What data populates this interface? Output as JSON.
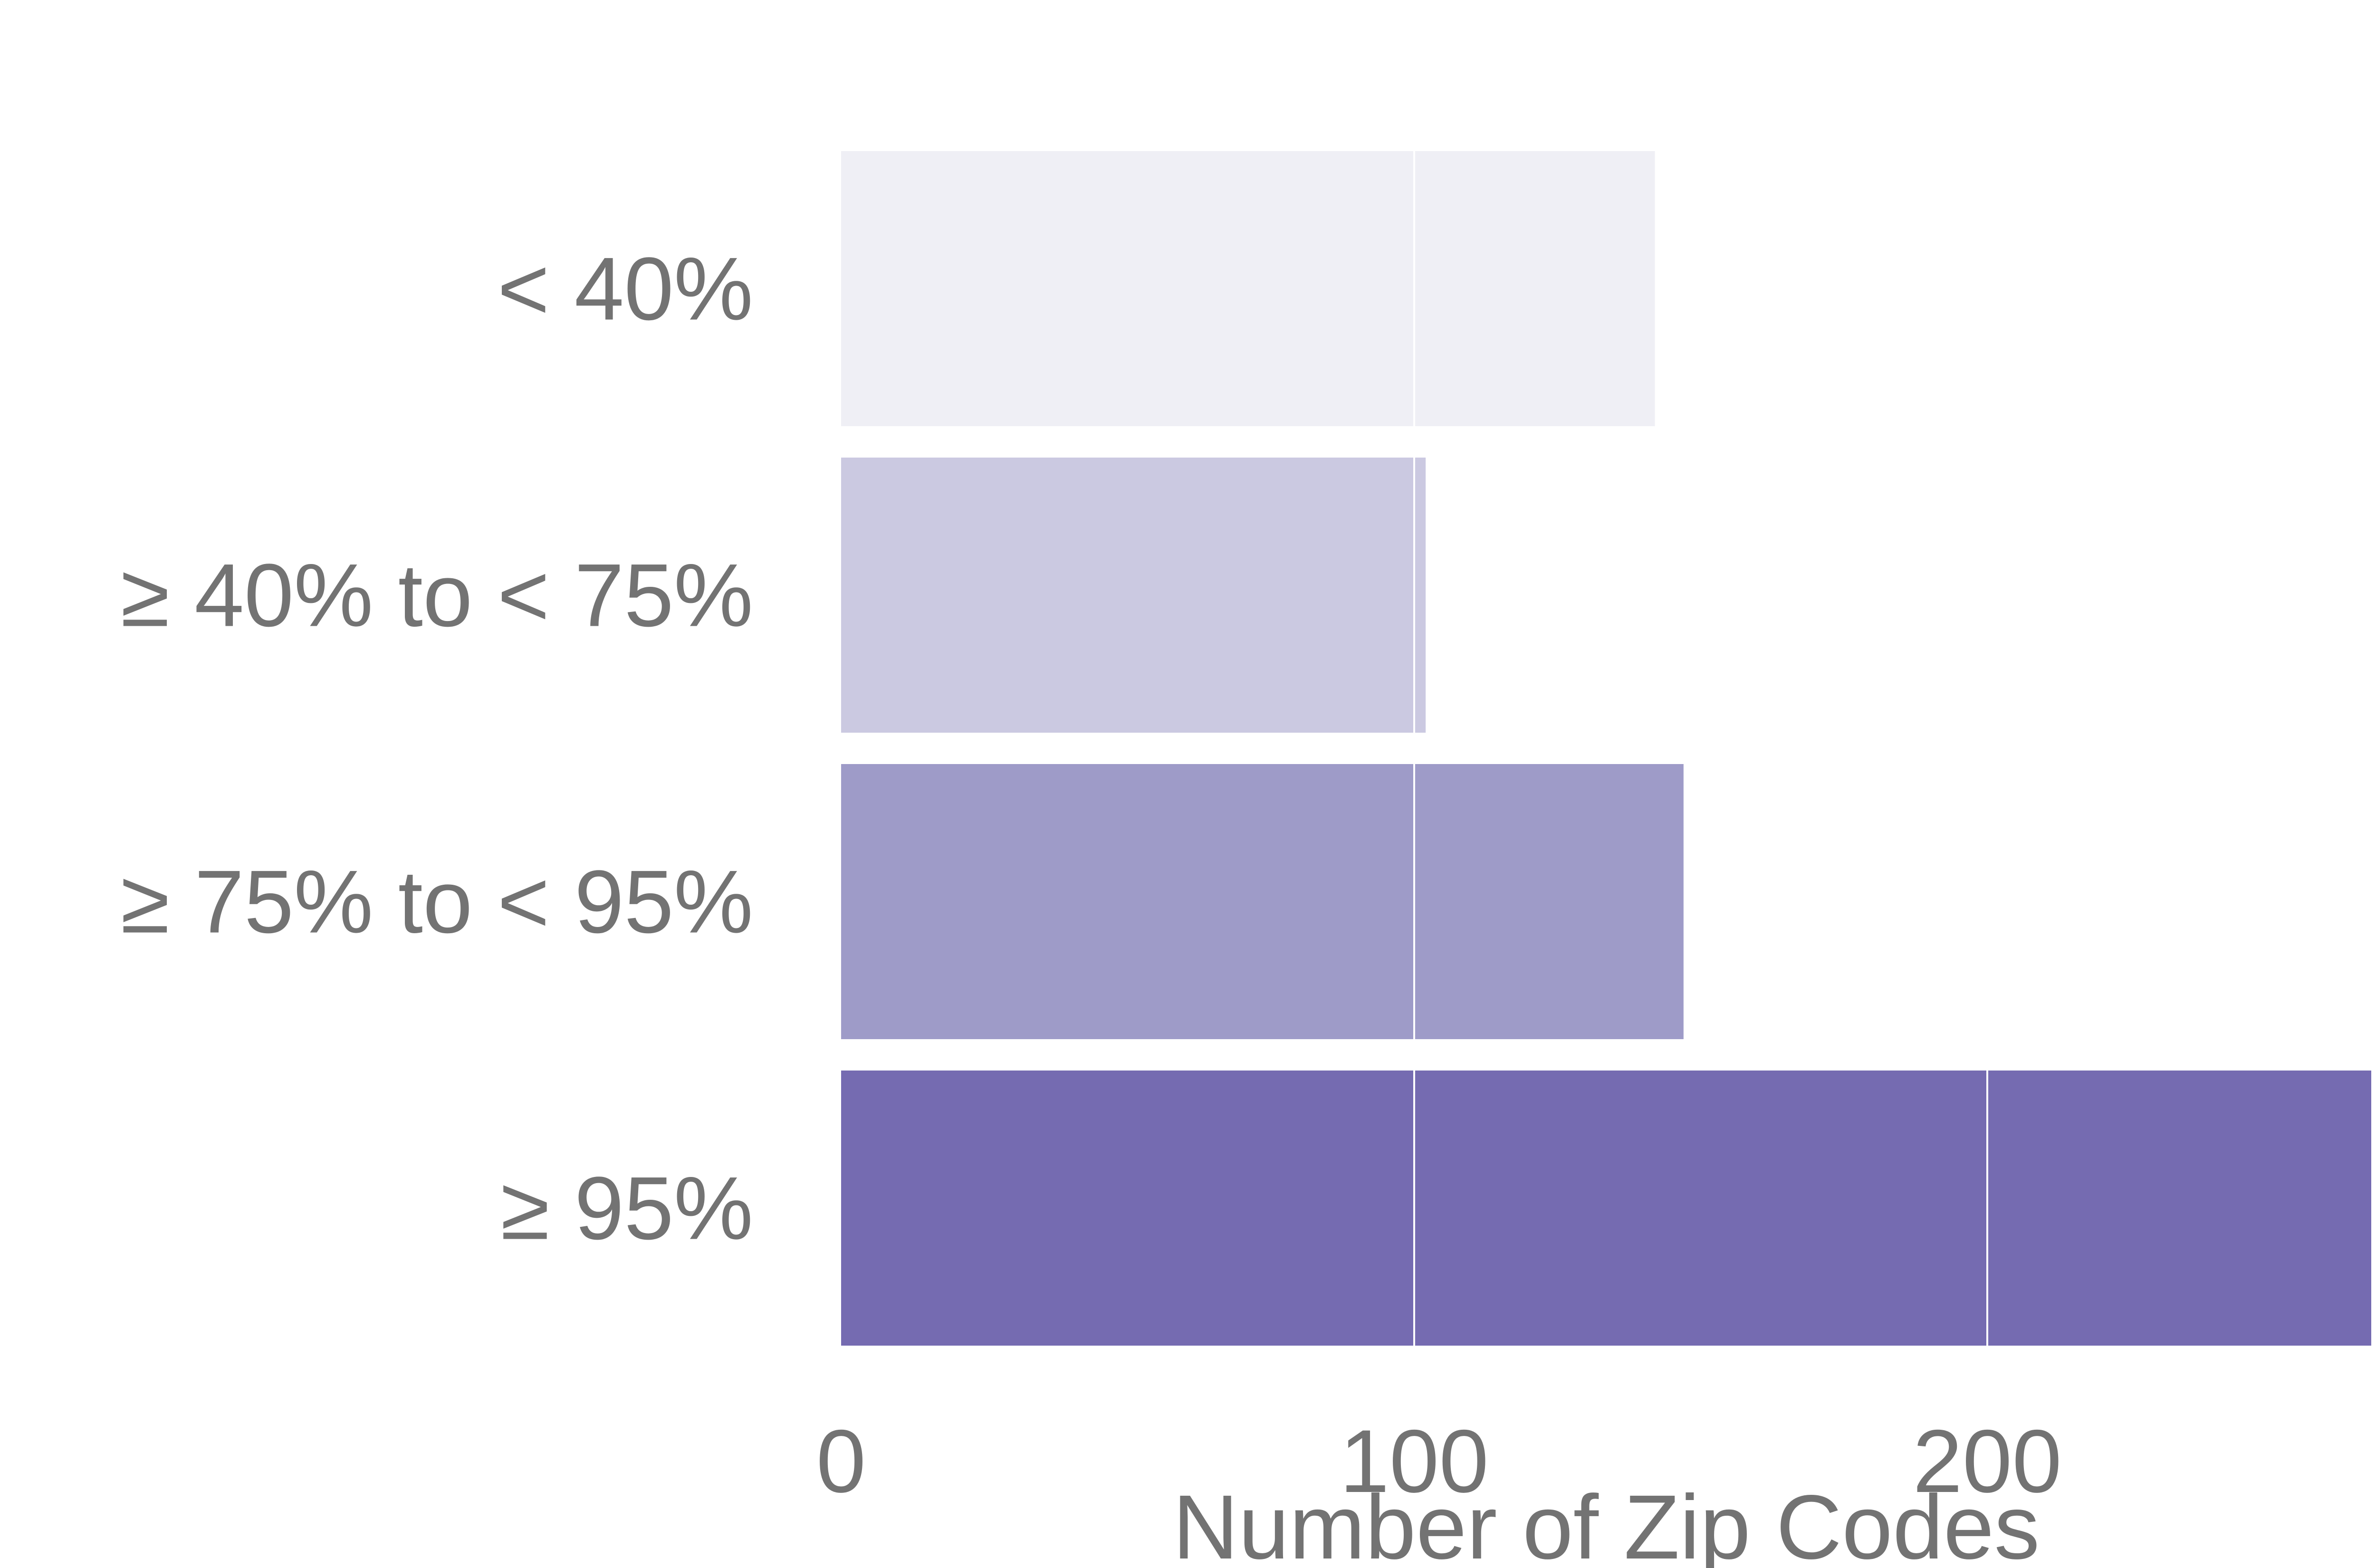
{
  "chart_data": {
    "type": "bar",
    "orientation": "horizontal",
    "title": "",
    "xlabel": "Number of Zip Codes",
    "ylabel": "",
    "categories": [
      "< 40%",
      "≥ 40% to < 75%",
      "≥ 75% to < 95%",
      "≥ 95%"
    ],
    "values": [
      142,
      102,
      147,
      267
    ],
    "xlim": [
      0,
      267
    ],
    "xticks": [
      0,
      100,
      200
    ],
    "xtick_labels": [
      "0",
      "100",
      "200"
    ],
    "grid": true,
    "colors": [
      "#efeff5",
      "#cbc9e1",
      "#9e9bc8",
      "#756bb1"
    ]
  }
}
